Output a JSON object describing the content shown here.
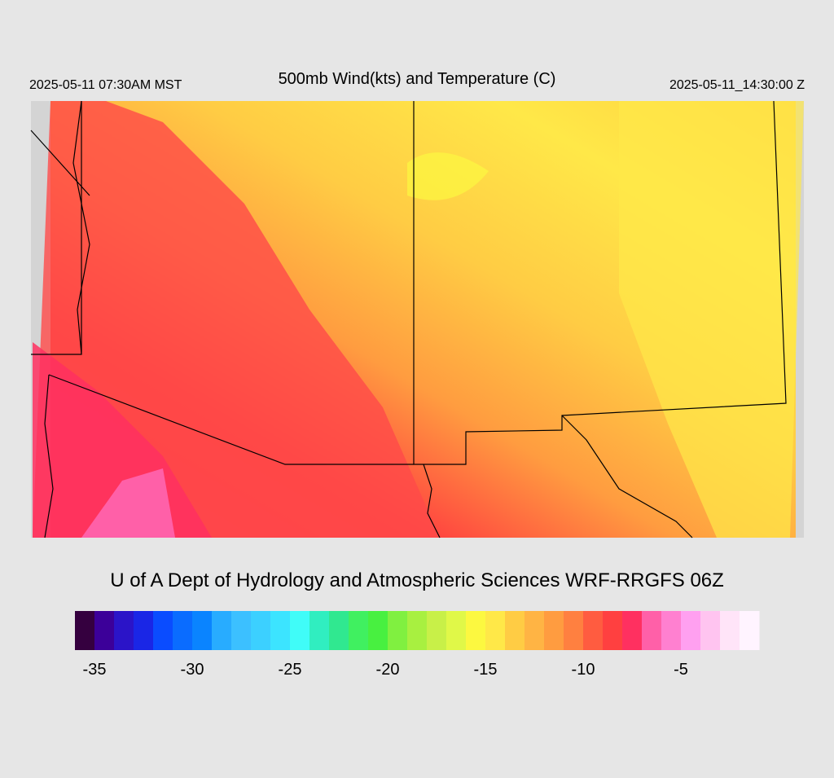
{
  "header": {
    "left": "2025-05-11 07:30AM MST",
    "title": "500mb Wind(kts) and Temperature (C)",
    "right": "2025-05-11_14:30:00 Z"
  },
  "credit": "U of A Dept of Hydrology and Atmospheric Sciences WRF-RRGFS 06Z",
  "colorbar": {
    "range": [
      -36,
      -1
    ],
    "ticks": [
      -35,
      -30,
      -25,
      -20,
      -15,
      -10,
      -5
    ],
    "colors": [
      "#35003f",
      "#3c0099",
      "#2b14c8",
      "#1a26e6",
      "#0a4cff",
      "#0a6cff",
      "#0a84ff",
      "#28acff",
      "#3cc0ff",
      "#3cd0ff",
      "#3ce4ff",
      "#40fcf8",
      "#30eec0",
      "#30e890",
      "#40f060",
      "#48f040",
      "#80f040",
      "#a8f040",
      "#c8f048",
      "#e0f848",
      "#fcf840",
      "#ffe848",
      "#ffcc44",
      "#ffb444",
      "#ff9c40",
      "#ff8040",
      "#ff5c40",
      "#ff4040",
      "#ff3060",
      "#ff60a8",
      "#ff80d0",
      "#ffa0f0",
      "#ffc4f0",
      "#ffe4f8",
      "#fff4ff"
    ]
  }
}
